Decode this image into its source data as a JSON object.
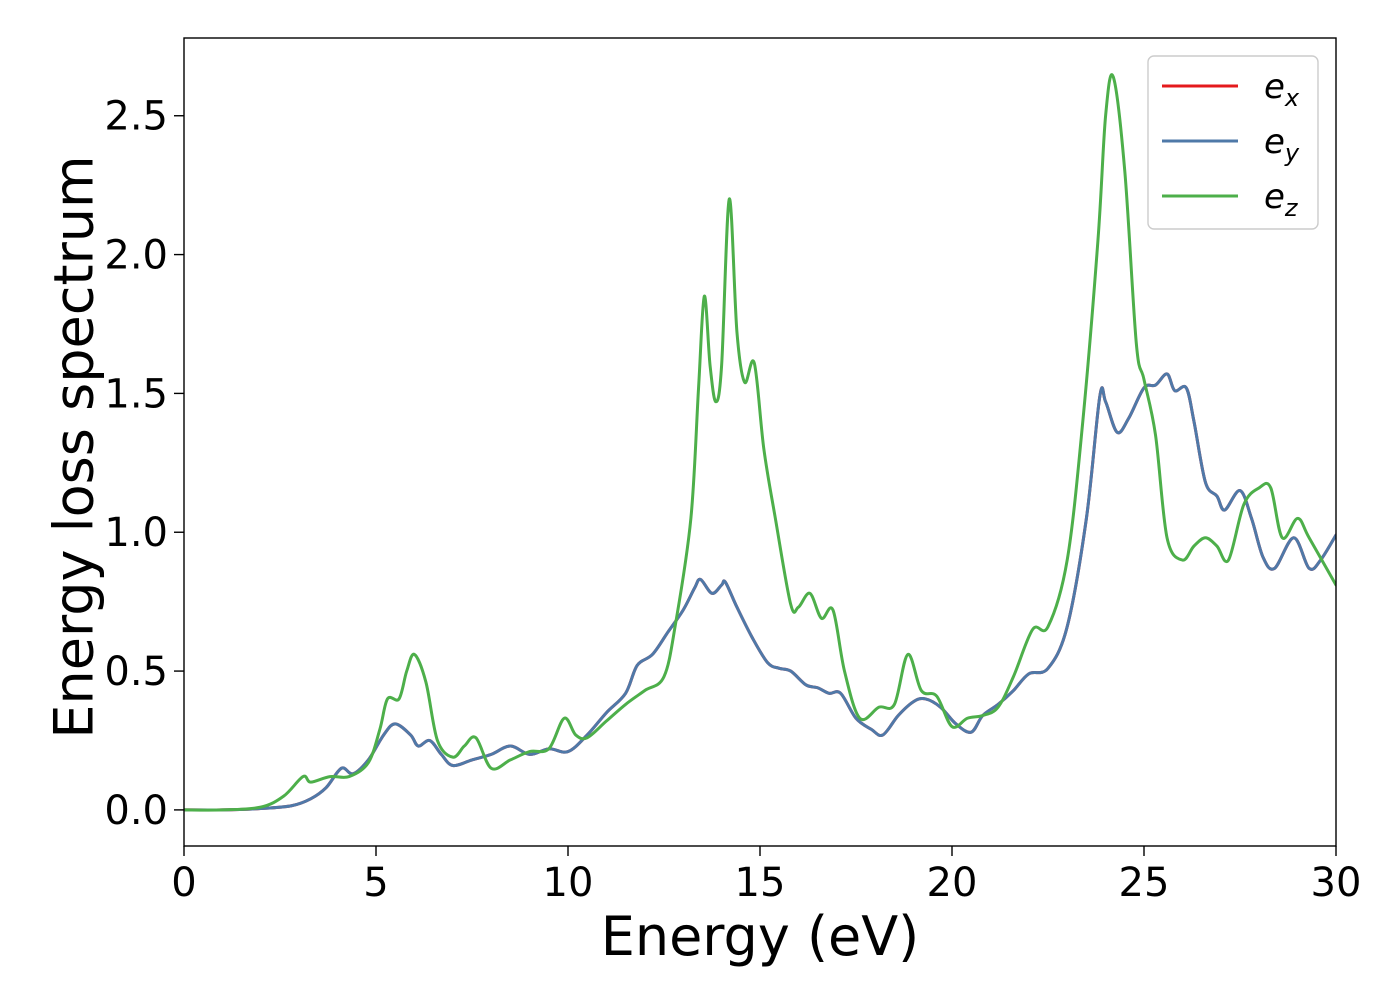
{
  "chart_data": {
    "type": "line",
    "title": "",
    "xlabel": "Energy (eV)",
    "ylabel": "Energy loss spectrum",
    "xlim": [
      0,
      30
    ],
    "ylim": [
      -0.13,
      2.78
    ],
    "xticks": [
      0,
      5,
      10,
      15,
      20,
      25,
      30
    ],
    "xtick_labels": [
      "0",
      "5",
      "10",
      "15",
      "20",
      "25",
      "30"
    ],
    "yticks": [
      0.0,
      0.5,
      1.0,
      1.5,
      2.0,
      2.5
    ],
    "ytick_labels": [
      "0.0",
      "0.5",
      "1.0",
      "1.5",
      "2.0",
      "2.5"
    ],
    "grid": false,
    "legend": {
      "position": "top-right",
      "entries": [
        "e",
        "e",
        "e"
      ],
      "subscripts": [
        "x",
        "y",
        "z"
      ]
    },
    "series": [
      {
        "name": "e_x",
        "color": "#e41a1c",
        "points": [
          [
            0,
            0
          ],
          [
            1,
            0
          ],
          [
            2,
            0.005
          ],
          [
            2.8,
            0.015
          ],
          [
            3.3,
            0.04
          ],
          [
            3.7,
            0.08
          ],
          [
            4.1,
            0.15
          ],
          [
            4.4,
            0.13
          ],
          [
            4.8,
            0.18
          ],
          [
            5.2,
            0.27
          ],
          [
            5.5,
            0.31
          ],
          [
            5.9,
            0.27
          ],
          [
            6.1,
            0.23
          ],
          [
            6.4,
            0.25
          ],
          [
            6.7,
            0.2
          ],
          [
            7,
            0.16
          ],
          [
            7.5,
            0.18
          ],
          [
            8,
            0.2
          ],
          [
            8.5,
            0.23
          ],
          [
            9,
            0.2
          ],
          [
            9.5,
            0.22
          ],
          [
            10,
            0.21
          ],
          [
            10.5,
            0.27
          ],
          [
            11,
            0.35
          ],
          [
            11.5,
            0.42
          ],
          [
            11.8,
            0.52
          ],
          [
            12.2,
            0.56
          ],
          [
            12.6,
            0.64
          ],
          [
            13,
            0.72
          ],
          [
            13.3,
            0.8
          ],
          [
            13.45,
            0.83
          ],
          [
            13.75,
            0.78
          ],
          [
            14,
            0.81
          ],
          [
            14.1,
            0.82
          ],
          [
            14.4,
            0.73
          ],
          [
            14.8,
            0.62
          ],
          [
            15.2,
            0.53
          ],
          [
            15.5,
            0.51
          ],
          [
            15.8,
            0.5
          ],
          [
            16.2,
            0.45
          ],
          [
            16.5,
            0.44
          ],
          [
            16.8,
            0.42
          ],
          [
            17.1,
            0.42
          ],
          [
            17.5,
            0.33
          ],
          [
            17.9,
            0.29
          ],
          [
            18.2,
            0.27
          ],
          [
            18.6,
            0.34
          ],
          [
            19,
            0.39
          ],
          [
            19.3,
            0.4
          ],
          [
            19.7,
            0.37
          ],
          [
            20.1,
            0.31
          ],
          [
            20.5,
            0.28
          ],
          [
            20.8,
            0.34
          ],
          [
            21.2,
            0.38
          ],
          [
            21.6,
            0.43
          ],
          [
            22,
            0.49
          ],
          [
            22.5,
            0.51
          ],
          [
            23,
            0.66
          ],
          [
            23.5,
            1.05
          ],
          [
            23.85,
            1.49
          ],
          [
            24,
            1.47
          ],
          [
            24.3,
            1.36
          ],
          [
            24.6,
            1.41
          ],
          [
            25,
            1.52
          ],
          [
            25.3,
            1.53
          ],
          [
            25.6,
            1.57
          ],
          [
            25.8,
            1.51
          ],
          [
            26.1,
            1.52
          ],
          [
            26.3,
            1.4
          ],
          [
            26.6,
            1.18
          ],
          [
            26.9,
            1.13
          ],
          [
            27.1,
            1.08
          ],
          [
            27.5,
            1.15
          ],
          [
            27.8,
            1.05
          ],
          [
            28.1,
            0.91
          ],
          [
            28.4,
            0.87
          ],
          [
            28.9,
            0.98
          ],
          [
            29.3,
            0.87
          ],
          [
            29.6,
            0.9
          ],
          [
            30,
            0.99
          ]
        ]
      },
      {
        "name": "e_y",
        "color": "#4f79a8",
        "points": [
          [
            0,
            0
          ],
          [
            1,
            0
          ],
          [
            2,
            0.005
          ],
          [
            2.8,
            0.015
          ],
          [
            3.3,
            0.04
          ],
          [
            3.7,
            0.08
          ],
          [
            4.1,
            0.15
          ],
          [
            4.4,
            0.13
          ],
          [
            4.8,
            0.18
          ],
          [
            5.2,
            0.27
          ],
          [
            5.5,
            0.31
          ],
          [
            5.9,
            0.27
          ],
          [
            6.1,
            0.23
          ],
          [
            6.4,
            0.25
          ],
          [
            6.7,
            0.2
          ],
          [
            7,
            0.16
          ],
          [
            7.5,
            0.18
          ],
          [
            8,
            0.2
          ],
          [
            8.5,
            0.23
          ],
          [
            9,
            0.2
          ],
          [
            9.5,
            0.22
          ],
          [
            10,
            0.21
          ],
          [
            10.5,
            0.27
          ],
          [
            11,
            0.35
          ],
          [
            11.5,
            0.42
          ],
          [
            11.8,
            0.52
          ],
          [
            12.2,
            0.56
          ],
          [
            12.6,
            0.64
          ],
          [
            13,
            0.72
          ],
          [
            13.3,
            0.8
          ],
          [
            13.45,
            0.83
          ],
          [
            13.75,
            0.78
          ],
          [
            14,
            0.81
          ],
          [
            14.1,
            0.82
          ],
          [
            14.4,
            0.73
          ],
          [
            14.8,
            0.62
          ],
          [
            15.2,
            0.53
          ],
          [
            15.5,
            0.51
          ],
          [
            15.8,
            0.5
          ],
          [
            16.2,
            0.45
          ],
          [
            16.5,
            0.44
          ],
          [
            16.8,
            0.42
          ],
          [
            17.1,
            0.42
          ],
          [
            17.5,
            0.33
          ],
          [
            17.9,
            0.29
          ],
          [
            18.2,
            0.27
          ],
          [
            18.6,
            0.34
          ],
          [
            19,
            0.39
          ],
          [
            19.3,
            0.4
          ],
          [
            19.7,
            0.37
          ],
          [
            20.1,
            0.31
          ],
          [
            20.5,
            0.28
          ],
          [
            20.8,
            0.34
          ],
          [
            21.2,
            0.38
          ],
          [
            21.6,
            0.43
          ],
          [
            22,
            0.49
          ],
          [
            22.5,
            0.51
          ],
          [
            23,
            0.66
          ],
          [
            23.5,
            1.05
          ],
          [
            23.85,
            1.49
          ],
          [
            24,
            1.47
          ],
          [
            24.3,
            1.36
          ],
          [
            24.6,
            1.41
          ],
          [
            25,
            1.52
          ],
          [
            25.3,
            1.53
          ],
          [
            25.6,
            1.57
          ],
          [
            25.8,
            1.51
          ],
          [
            26.1,
            1.52
          ],
          [
            26.3,
            1.4
          ],
          [
            26.6,
            1.18
          ],
          [
            26.9,
            1.13
          ],
          [
            27.1,
            1.08
          ],
          [
            27.5,
            1.15
          ],
          [
            27.8,
            1.05
          ],
          [
            28.1,
            0.91
          ],
          [
            28.4,
            0.87
          ],
          [
            28.9,
            0.98
          ],
          [
            29.3,
            0.87
          ],
          [
            29.6,
            0.9
          ],
          [
            30,
            0.99
          ]
        ]
      },
      {
        "name": "e_z",
        "color": "#4daf4a",
        "points": [
          [
            0,
            0
          ],
          [
            1,
            0
          ],
          [
            2,
            0.01
          ],
          [
            2.6,
            0.05
          ],
          [
            3.1,
            0.12
          ],
          [
            3.3,
            0.1
          ],
          [
            3.8,
            0.12
          ],
          [
            4.3,
            0.12
          ],
          [
            4.8,
            0.17
          ],
          [
            5.1,
            0.29
          ],
          [
            5.3,
            0.4
          ],
          [
            5.6,
            0.4
          ],
          [
            5.8,
            0.5
          ],
          [
            6,
            0.56
          ],
          [
            6.3,
            0.46
          ],
          [
            6.6,
            0.25
          ],
          [
            7,
            0.19
          ],
          [
            7.3,
            0.23
          ],
          [
            7.6,
            0.26
          ],
          [
            8,
            0.15
          ],
          [
            8.5,
            0.18
          ],
          [
            9,
            0.21
          ],
          [
            9.5,
            0.22
          ],
          [
            9.9,
            0.33
          ],
          [
            10.2,
            0.27
          ],
          [
            10.5,
            0.26
          ],
          [
            11,
            0.32
          ],
          [
            11.5,
            0.38
          ],
          [
            12,
            0.43
          ],
          [
            12.5,
            0.48
          ],
          [
            12.8,
            0.67
          ],
          [
            13.2,
            1.05
          ],
          [
            13.4,
            1.52
          ],
          [
            13.55,
            1.85
          ],
          [
            13.7,
            1.6
          ],
          [
            13.85,
            1.47
          ],
          [
            14,
            1.6
          ],
          [
            14.2,
            2.2
          ],
          [
            14.4,
            1.72
          ],
          [
            14.6,
            1.54
          ],
          [
            14.85,
            1.61
          ],
          [
            15.1,
            1.3
          ],
          [
            15.4,
            1.05
          ],
          [
            15.8,
            0.74
          ],
          [
            16,
            0.73
          ],
          [
            16.3,
            0.78
          ],
          [
            16.6,
            0.69
          ],
          [
            16.9,
            0.72
          ],
          [
            17.2,
            0.5
          ],
          [
            17.6,
            0.33
          ],
          [
            18.1,
            0.37
          ],
          [
            18.5,
            0.38
          ],
          [
            18.85,
            0.56
          ],
          [
            19.2,
            0.43
          ],
          [
            19.6,
            0.41
          ],
          [
            20,
            0.3
          ],
          [
            20.4,
            0.33
          ],
          [
            20.8,
            0.34
          ],
          [
            21.2,
            0.37
          ],
          [
            21.6,
            0.48
          ],
          [
            22.1,
            0.65
          ],
          [
            22.5,
            0.66
          ],
          [
            23,
            0.9
          ],
          [
            23.4,
            1.39
          ],
          [
            23.8,
            2.05
          ],
          [
            24,
            2.5
          ],
          [
            24.2,
            2.64
          ],
          [
            24.5,
            2.3
          ],
          [
            24.8,
            1.68
          ],
          [
            25,
            1.55
          ],
          [
            25.3,
            1.35
          ],
          [
            25.6,
            0.98
          ],
          [
            26,
            0.9
          ],
          [
            26.3,
            0.95
          ],
          [
            26.6,
            0.98
          ],
          [
            26.9,
            0.95
          ],
          [
            27.2,
            0.9
          ],
          [
            27.6,
            1.1
          ],
          [
            28,
            1.16
          ],
          [
            28.3,
            1.16
          ],
          [
            28.6,
            0.98
          ],
          [
            29,
            1.05
          ],
          [
            29.3,
            0.98
          ],
          [
            30,
            0.81
          ]
        ]
      }
    ]
  }
}
